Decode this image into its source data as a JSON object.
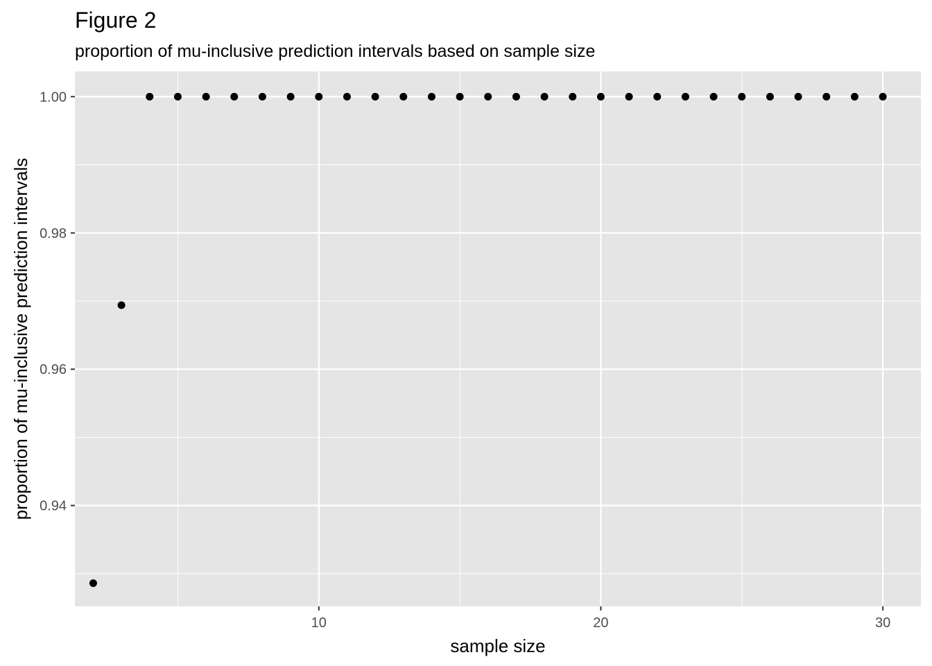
{
  "chart_data": {
    "type": "scatter",
    "title": "Figure 2",
    "subtitle": "proportion of mu-inclusive prediction intervals based on sample size",
    "xlabel": "sample size",
    "ylabel": "proportion of mu-inclusive prediction intervals",
    "xlim": [
      1.35,
      31.35
    ],
    "ylim": [
      0.9252,
      1.0037
    ],
    "x_ticks": [
      10,
      20,
      30
    ],
    "x_minor_ticks": [
      5,
      15,
      25
    ],
    "y_ticks": [
      0.94,
      0.96,
      0.98,
      1.0
    ],
    "y_minor_ticks": [
      0.93,
      0.95,
      0.97,
      0.99
    ],
    "x_tick_labels": [
      "10",
      "20",
      "30"
    ],
    "y_tick_labels": [
      "0.94",
      "0.96",
      "0.98",
      "1.00"
    ],
    "grid": true,
    "background": "#e5e5e5",
    "grid_color": "#ffffff",
    "point_color": "#000000",
    "points": [
      {
        "x": 2,
        "y": 0.9286
      },
      {
        "x": 3,
        "y": 0.9694
      },
      {
        "x": 4,
        "y": 1.0
      },
      {
        "x": 5,
        "y": 1.0
      },
      {
        "x": 6,
        "y": 1.0
      },
      {
        "x": 7,
        "y": 1.0
      },
      {
        "x": 8,
        "y": 1.0
      },
      {
        "x": 9,
        "y": 1.0
      },
      {
        "x": 10,
        "y": 1.0
      },
      {
        "x": 11,
        "y": 1.0
      },
      {
        "x": 12,
        "y": 1.0
      },
      {
        "x": 13,
        "y": 1.0
      },
      {
        "x": 14,
        "y": 1.0
      },
      {
        "x": 15,
        "y": 1.0
      },
      {
        "x": 16,
        "y": 1.0
      },
      {
        "x": 17,
        "y": 1.0
      },
      {
        "x": 18,
        "y": 1.0
      },
      {
        "x": 19,
        "y": 1.0
      },
      {
        "x": 20,
        "y": 1.0
      },
      {
        "x": 21,
        "y": 1.0
      },
      {
        "x": 22,
        "y": 1.0
      },
      {
        "x": 23,
        "y": 1.0
      },
      {
        "x": 24,
        "y": 1.0
      },
      {
        "x": 25,
        "y": 1.0
      },
      {
        "x": 26,
        "y": 1.0
      },
      {
        "x": 27,
        "y": 1.0
      },
      {
        "x": 28,
        "y": 1.0
      },
      {
        "x": 29,
        "y": 1.0
      },
      {
        "x": 30,
        "y": 1.0
      }
    ]
  }
}
